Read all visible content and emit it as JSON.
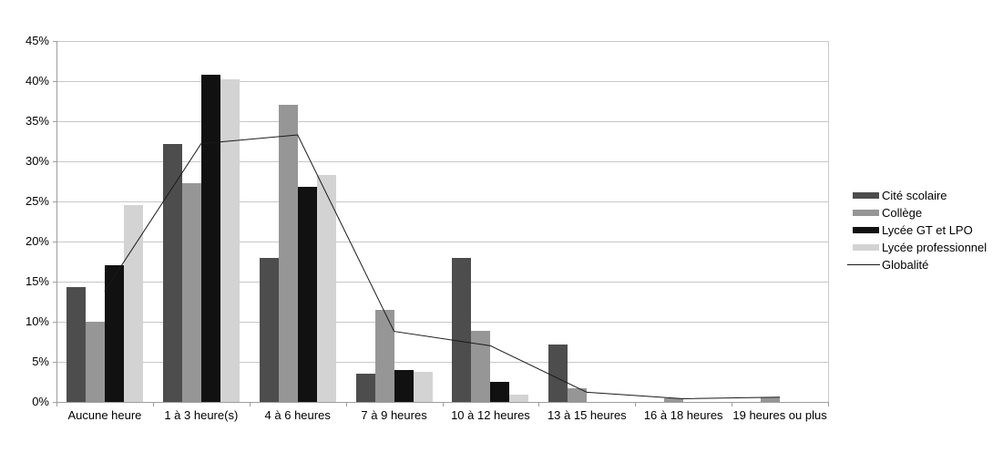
{
  "chart_data": {
    "type": "bar",
    "subtype": "grouped-bars-with-line-overlay",
    "title": "",
    "xlabel": "",
    "ylabel": "",
    "categories": [
      "Aucune heure",
      "1 à 3 heure(s)",
      "4 à 6 heures",
      "7 à 9 heures",
      "10 à 12 heures",
      "13 à 15 heures",
      "16 à 18 heures",
      "19 heures ou plus"
    ],
    "series": [
      {
        "name": "Cité scolaire",
        "type": "bar",
        "color": "#4d4d4d",
        "values": [
          14.3,
          32.2,
          17.9,
          3.5,
          17.9,
          7.2,
          0,
          0
        ]
      },
      {
        "name": "Collège",
        "type": "bar",
        "color": "#969696",
        "values": [
          10.0,
          27.3,
          37.0,
          11.5,
          8.9,
          1.7,
          0.4,
          0.6
        ]
      },
      {
        "name": "Lycée GT et LPO",
        "type": "bar",
        "color": "#111111",
        "values": [
          17.0,
          40.8,
          26.8,
          4.0,
          2.5,
          0,
          0,
          0
        ]
      },
      {
        "name": "Lycée professionnel",
        "type": "bar",
        "color": "#d3d3d3",
        "values": [
          24.5,
          40.2,
          28.3,
          3.8,
          0.9,
          0,
          0,
          0
        ]
      },
      {
        "name": "Globalité",
        "type": "line",
        "color": "#1a1a1a",
        "values": [
          13.8,
          32.2,
          33.3,
          8.8,
          7.0,
          1.2,
          0.4,
          0.6
        ]
      }
    ],
    "y_axis": {
      "min": 0,
      "max": 45,
      "step": 5,
      "tick_suffix": "%",
      "tick_labels": [
        "0%",
        "5%",
        "10%",
        "15%",
        "20%",
        "25%",
        "30%",
        "35%",
        "40%",
        "45%"
      ]
    },
    "grid": true,
    "legend_position": "right",
    "colors": {
      "gridline": "#c8c8c8",
      "axis": "#9e9e9e",
      "background": "#ffffff",
      "text": "#000000"
    }
  }
}
